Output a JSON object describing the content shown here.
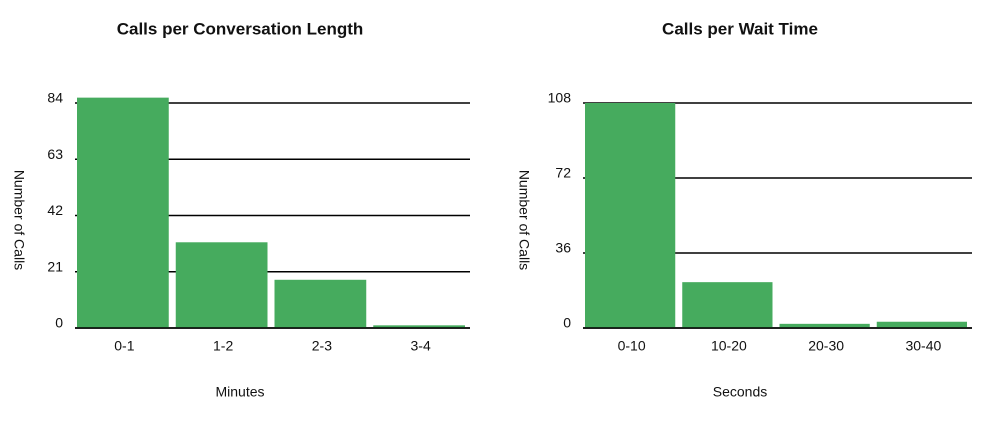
{
  "chart_data": [
    {
      "type": "bar",
      "title": "Calls per Conversation Length",
      "x_label": "Minutes",
      "y_label": "Number of Calls",
      "categories": [
        "0-1",
        "1-2",
        "2-3",
        "3-4"
      ],
      "values": [
        86,
        32,
        18,
        1
      ],
      "color": "#46ab5e",
      "ylim": [
        0,
        84
      ],
      "yticks": [
        0,
        21,
        42,
        63,
        84
      ],
      "grid": true
    },
    {
      "type": "bar",
      "title": "Calls per Wait Time",
      "x_label": "Seconds",
      "y_label": "Number of Calls",
      "categories": [
        "0-10",
        "10-20",
        "20-30",
        "30-40"
      ],
      "values": [
        108,
        22,
        2,
        3
      ],
      "color": "#46ab5e",
      "ylim": [
        0,
        108
      ],
      "yticks": [
        0,
        36,
        72,
        108
      ],
      "grid": true
    }
  ]
}
